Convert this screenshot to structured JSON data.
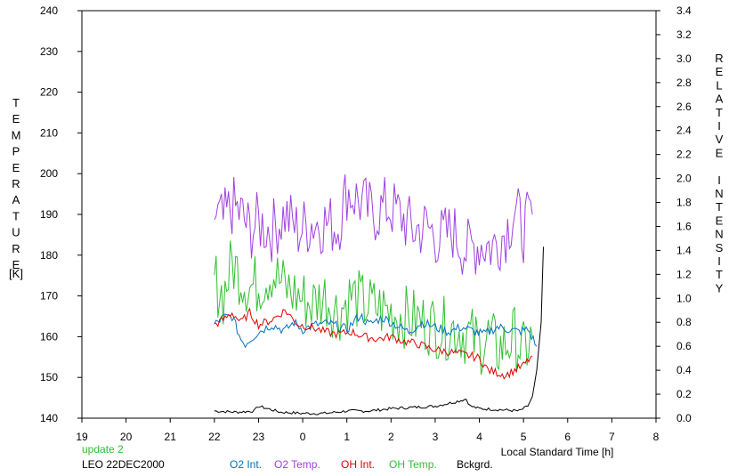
{
  "chart_data": {
    "type": "line",
    "xlabel": "Local Standard Time [h]",
    "ylabel_left": "TEMPERATURE",
    "ylabel_left_unit": "[K]",
    "ylabel_right": "RELATIVE INTENSITY",
    "x_ticks": [
      "19",
      "20",
      "21",
      "22",
      "23",
      "0",
      "1",
      "2",
      "3",
      "4",
      "5",
      "6",
      "7",
      "8"
    ],
    "xlim": [
      19,
      32
    ],
    "y_left_ticks": [
      "140",
      "150",
      "160",
      "170",
      "180",
      "190",
      "200",
      "210",
      "220",
      "230",
      "240"
    ],
    "ylim_left": [
      140,
      240
    ],
    "y_right_ticks": [
      "0.0",
      "0.2",
      "0.4",
      "0.6",
      "0.8",
      "1.0",
      "1.2",
      "1.4",
      "1.6",
      "1.8",
      "2.0",
      "2.2",
      "2.4",
      "2.6",
      "2.8",
      "3.0",
      "3.2",
      "3.4"
    ],
    "ylim_right": [
      0,
      3.4
    ],
    "grid": false,
    "status_text": "update 2",
    "station_text": "LEO 22DEC2000",
    "series": [
      {
        "name": "O2 Int.",
        "axis": "right",
        "color": "#0070c0",
        "x": [
          22.0,
          22.2,
          22.4,
          22.6,
          22.7,
          23.0,
          23.3,
          23.6,
          23.8,
          24.0,
          24.3,
          24.6,
          25.0,
          25.3,
          25.5,
          25.8,
          26.1,
          26.4,
          26.7,
          27.0,
          27.3,
          27.6,
          27.9,
          28.1,
          28.4,
          28.7,
          28.9,
          29.1,
          29.3
        ],
        "y": [
          0.78,
          0.84,
          0.85,
          0.66,
          0.62,
          0.72,
          0.78,
          0.73,
          0.8,
          0.74,
          0.78,
          0.79,
          0.74,
          0.86,
          0.78,
          0.84,
          0.78,
          0.72,
          0.8,
          0.76,
          0.72,
          0.76,
          0.72,
          0.7,
          0.76,
          0.74,
          0.72,
          0.74,
          0.6
        ]
      },
      {
        "name": "O2 Temp.",
        "axis": "left",
        "color": "#a040e0",
        "x": [
          22.0,
          22.2,
          22.4,
          22.6,
          22.8,
          23.0,
          23.3,
          23.6,
          23.9,
          24.2,
          24.5,
          24.8,
          25.0,
          25.3,
          25.6,
          25.9,
          26.2,
          26.5,
          26.8,
          27.1,
          27.4,
          27.7,
          28.0,
          28.3,
          28.6,
          28.8,
          29.0,
          29.2
        ],
        "y": [
          190,
          188,
          192,
          190,
          186,
          188,
          186,
          190,
          186,
          188,
          188,
          187,
          196,
          193,
          190,
          192,
          190,
          186,
          187,
          184,
          186,
          181,
          183,
          182,
          186,
          191,
          186,
          190
        ]
      },
      {
        "name": "OH Int.",
        "axis": "right",
        "color": "#e00000",
        "x": [
          22.0,
          22.2,
          22.4,
          22.6,
          22.8,
          23.0,
          23.3,
          23.6,
          23.9,
          24.2,
          24.5,
          24.8,
          25.1,
          25.4,
          25.7,
          26.0,
          26.3,
          26.6,
          26.9,
          27.2,
          27.5,
          27.8,
          28.0,
          28.2,
          28.4,
          28.6,
          28.8,
          29.0,
          29.2
        ],
        "y": [
          0.78,
          0.82,
          0.88,
          0.8,
          0.88,
          0.78,
          0.82,
          0.9,
          0.78,
          0.76,
          0.72,
          0.7,
          0.72,
          0.68,
          0.66,
          0.68,
          0.64,
          0.62,
          0.58,
          0.56,
          0.54,
          0.52,
          0.5,
          0.4,
          0.38,
          0.36,
          0.4,
          0.44,
          0.52
        ]
      },
      {
        "name": "OH Temp.",
        "axis": "left",
        "color": "#30c030",
        "x": [
          22.0,
          22.2,
          22.4,
          22.6,
          22.8,
          23.0,
          23.3,
          23.6,
          23.9,
          24.2,
          24.5,
          24.8,
          25.1,
          25.4,
          25.7,
          26.0,
          26.3,
          26.6,
          26.9,
          27.2,
          27.5,
          27.8,
          28.0,
          28.2,
          28.4,
          28.6,
          28.8,
          29.0,
          29.2
        ],
        "y": [
          174,
          170,
          178,
          175,
          172,
          173,
          176,
          172,
          170,
          168,
          170,
          166,
          170,
          168,
          167,
          166,
          165,
          164,
          163,
          162,
          162,
          160,
          158,
          160,
          157,
          158,
          160,
          156,
          160
        ]
      },
      {
        "name": "Bckgrd.",
        "axis": "right",
        "color": "#000000",
        "x": [
          22.0,
          22.5,
          22.9,
          23.0,
          23.5,
          24.0,
          24.5,
          25.0,
          25.5,
          26.0,
          26.5,
          27.0,
          27.5,
          27.7,
          27.8,
          28.0,
          28.5,
          28.9,
          29.1,
          29.2,
          29.3,
          29.4,
          29.45
        ],
        "y": [
          0.06,
          0.05,
          0.06,
          0.1,
          0.05,
          0.04,
          0.04,
          0.06,
          0.06,
          0.08,
          0.09,
          0.1,
          0.14,
          0.16,
          0.1,
          0.08,
          0.07,
          0.06,
          0.1,
          0.18,
          0.4,
          0.8,
          1.43
        ]
      }
    ]
  }
}
